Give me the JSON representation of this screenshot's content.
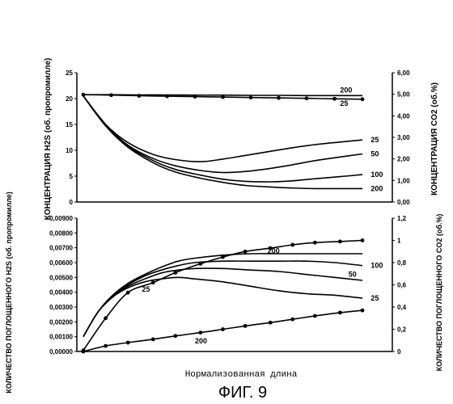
{
  "figure_title": "ФИГ. 9",
  "xlabel": "Нормализованная длина",
  "chart_data": [
    {
      "type": "line",
      "ylabel_left": "КОНЦЕНТРАЦИЯ H2S (об. пропромилле)",
      "ylabel_right": "КОНЦЕНТРАЦИЯ CO2 (об.%)",
      "ylim_left": [
        0,
        25
      ],
      "ylim_right": [
        0,
        6
      ],
      "y_ticks_left": [
        "0",
        "5",
        "10",
        "15",
        "20",
        "25"
      ],
      "y_ticks_right": [
        "0,00",
        "1,00",
        "2,00",
        "3,00",
        "4,00",
        "5,00",
        "6,00"
      ],
      "xlim": [
        0,
        1
      ],
      "grid": false,
      "series": [
        {
          "name": "25",
          "axis": "left",
          "marker": false,
          "x": [
            0,
            0.08,
            0.16,
            0.25,
            0.33,
            0.42,
            0.5,
            0.58,
            0.67,
            0.75,
            0.83,
            0.92,
            1.0
          ],
          "y": [
            20.5,
            15,
            11.5,
            9.2,
            8.2,
            7.8,
            8.3,
            9,
            9.8,
            10.5,
            11.1,
            11.6,
            12
          ]
        },
        {
          "name": "50",
          "axis": "left",
          "marker": false,
          "x": [
            0,
            0.08,
            0.16,
            0.25,
            0.33,
            0.42,
            0.5,
            0.58,
            0.67,
            0.75,
            0.83,
            0.92,
            1.0
          ],
          "y": [
            20.5,
            15,
            11,
            8.4,
            7,
            6.1,
            5.7,
            5.9,
            6.5,
            7.2,
            8,
            8.7,
            9.3
          ]
        },
        {
          "name": "100",
          "axis": "left",
          "marker": false,
          "x": [
            0,
            0.08,
            0.16,
            0.25,
            0.33,
            0.42,
            0.5,
            0.58,
            0.67,
            0.75,
            0.83,
            0.92,
            1.0
          ],
          "y": [
            20.5,
            14.8,
            10.8,
            8,
            6.3,
            5.2,
            4.4,
            4,
            3.9,
            4.1,
            4.5,
            4.9,
            5.3
          ]
        },
        {
          "name": "200",
          "axis": "left",
          "marker": false,
          "x": [
            0,
            0.08,
            0.16,
            0.25,
            0.33,
            0.42,
            0.5,
            0.58,
            0.67,
            0.75,
            0.83,
            0.92,
            1.0
          ],
          "y": [
            20.5,
            14.7,
            10.6,
            7.6,
            5.8,
            4.6,
            3.8,
            3.2,
            2.9,
            2.7,
            2.6,
            2.6,
            2.6
          ]
        },
        {
          "name": "",
          "axis": "right",
          "marker": false,
          "x": [
            0,
            0.1,
            0.2,
            0.3,
            0.4,
            0.5,
            0.6,
            0.7,
            0.8,
            0.9,
            1.0
          ],
          "y": [
            4.98,
            4.98,
            4.97,
            4.97,
            4.96,
            4.96,
            4.95,
            4.95,
            4.94,
            4.94,
            4.94
          ]
        },
        {
          "name": "",
          "axis": "right",
          "marker": true,
          "x": [
            0,
            0.1,
            0.2,
            0.3,
            0.4,
            0.5,
            0.6,
            0.7,
            0.8,
            0.9,
            1.0
          ],
          "y": [
            4.98,
            4.96,
            4.93,
            4.91,
            4.89,
            4.87,
            4.85,
            4.83,
            4.81,
            4.79,
            4.77
          ]
        }
      ],
      "curve_labels": [
        {
          "text": "200",
          "x": 0.92,
          "y": 5.2,
          "axis": "right"
        },
        {
          "text": "25",
          "x": 0.92,
          "y": 4.58,
          "axis": "right"
        },
        {
          "text": "25",
          "x": 1.03,
          "y": 12,
          "axis": "left"
        },
        {
          "text": "50",
          "x": 1.03,
          "y": 9.3,
          "axis": "left"
        },
        {
          "text": "100",
          "x": 1.03,
          "y": 5.3,
          "axis": "left"
        },
        {
          "text": "200",
          "x": 1.03,
          "y": 2.6,
          "axis": "left"
        }
      ]
    },
    {
      "type": "line",
      "ylabel_left": "КОЛИЧЕСТВО ПОГЛОЩЕННОГО H2S (об. пропромилле)",
      "ylabel_right": "КОЛИЧЕСТВО ПОГЛОЩЕННОГО CO2 (об.%)",
      "ylim_left": [
        0,
        0.009
      ],
      "ylim_right": [
        0,
        1.2
      ],
      "y_ticks_left": [
        "0,00000",
        "0,00100",
        "0,00200",
        "0,00300",
        "0,00400",
        "0,00500",
        "0,00600",
        "0,00700",
        "0,00800",
        "0,00900"
      ],
      "y_ticks_right": [
        "0",
        "0,2",
        "0,4",
        "0,6",
        "0,8",
        "1",
        "1,2"
      ],
      "xlim": [
        0,
        1
      ],
      "grid": false,
      "series": [
        {
          "name": "25",
          "axis": "left",
          "marker": false,
          "x": [
            0,
            0.05,
            0.1,
            0.16,
            0.22,
            0.28,
            0.34,
            0.4,
            0.5,
            0.6,
            0.7,
            0.8,
            0.9,
            1.0
          ],
          "y": [
            0.001,
            0.0026,
            0.0036,
            0.0043,
            0.0047,
            0.0049,
            0.005,
            0.0049,
            0.0047,
            0.0044,
            0.0041,
            0.0039,
            0.0038,
            0.0036
          ]
        },
        {
          "name": "50",
          "axis": "left",
          "marker": false,
          "x": [
            0,
            0.05,
            0.1,
            0.16,
            0.22,
            0.28,
            0.34,
            0.4,
            0.5,
            0.6,
            0.7,
            0.8,
            0.9,
            1.0
          ],
          "y": [
            0.001,
            0.0026,
            0.0036,
            0.0044,
            0.0049,
            0.0053,
            0.0055,
            0.0056,
            0.0056,
            0.0055,
            0.0054,
            0.0052,
            0.005,
            0.0048
          ]
        },
        {
          "name": "100",
          "axis": "left",
          "marker": false,
          "x": [
            0,
            0.05,
            0.1,
            0.16,
            0.22,
            0.28,
            0.34,
            0.4,
            0.5,
            0.6,
            0.7,
            0.8,
            0.9,
            1.0
          ],
          "y": [
            0.001,
            0.0026,
            0.0037,
            0.0045,
            0.0051,
            0.0055,
            0.0058,
            0.006,
            0.0061,
            0.0061,
            0.0061,
            0.0061,
            0.006,
            0.0058
          ]
        },
        {
          "name": "200",
          "axis": "left",
          "marker": false,
          "x": [
            0,
            0.05,
            0.1,
            0.16,
            0.22,
            0.28,
            0.34,
            0.4,
            0.5,
            0.6,
            0.7,
            0.8,
            0.9,
            1.0
          ],
          "y": [
            0.001,
            0.0026,
            0.0037,
            0.0046,
            0.0052,
            0.0057,
            0.0061,
            0.0063,
            0.0065,
            0.0066,
            0.0066,
            0.0066,
            0.0066,
            0.0066
          ]
        },
        {
          "name": "25",
          "axis": "right",
          "marker": true,
          "x": [
            0,
            0.08,
            0.16,
            0.25,
            0.33,
            0.42,
            0.5,
            0.58,
            0.67,
            0.75,
            0.83,
            0.92,
            1.0
          ],
          "y": [
            0.01,
            0.3,
            0.53,
            0.62,
            0.71,
            0.79,
            0.85,
            0.9,
            0.93,
            0.96,
            0.98,
            0.99,
            1.0
          ]
        },
        {
          "name": "200",
          "axis": "right",
          "marker": true,
          "x": [
            0,
            0.08,
            0.16,
            0.25,
            0.33,
            0.42,
            0.5,
            0.58,
            0.67,
            0.75,
            0.83,
            0.92,
            1.0
          ],
          "y": [
            0.0,
            0.05,
            0.08,
            0.11,
            0.14,
            0.17,
            0.2,
            0.23,
            0.26,
            0.29,
            0.32,
            0.35,
            0.37
          ]
        }
      ],
      "curve_labels": [
        {
          "text": "200",
          "x": 0.66,
          "y": 0.0068,
          "axis": "left"
        },
        {
          "text": "100",
          "x": 1.03,
          "y": 0.0058,
          "axis": "left"
        },
        {
          "text": "50",
          "x": 0.95,
          "y": 0.0052,
          "axis": "left"
        },
        {
          "text": "25",
          "x": 1.03,
          "y": 0.0036,
          "axis": "left"
        },
        {
          "text": "25",
          "x": 0.21,
          "y": 0.0042,
          "axis": "left"
        },
        {
          "text": "200",
          "x": 0.4,
          "y": 0.0007,
          "axis": "left"
        }
      ]
    }
  ]
}
